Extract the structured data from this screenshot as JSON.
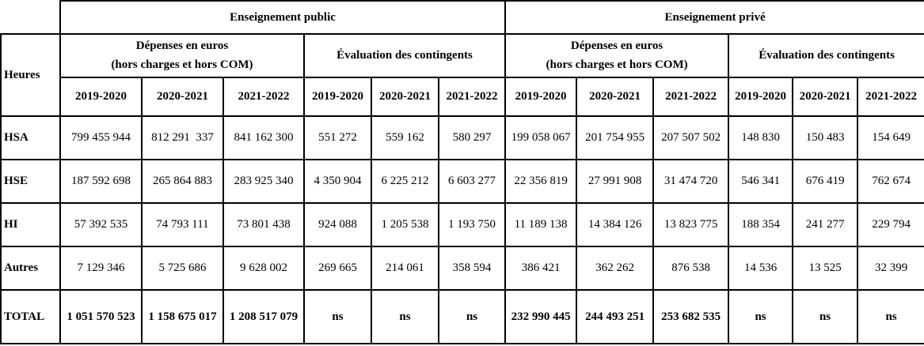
{
  "table": {
    "corner_label": "Heures",
    "groups": [
      {
        "label": "Enseignement public"
      },
      {
        "label": "Enseignement privé"
      }
    ],
    "subheaders": {
      "depenses_line1": "Dépenses en euros",
      "depenses_line2": "(hors charges et hors COM)",
      "evaluation": "Évaluation des contingents"
    },
    "years": [
      "2019-2020",
      "2020-2021",
      "2021-2022"
    ],
    "rows": [
      {
        "label": "HSA",
        "values": [
          "799 455 944",
          "812 291  337",
          "841 162 300",
          "551 272",
          "559 162",
          "580 297",
          "199 058 067",
          "201 754 955",
          "207 507 502",
          "148 830",
          "150 483",
          "154 649"
        ]
      },
      {
        "label": "HSE",
        "values": [
          "187 592 698",
          "265 864 883",
          "283 925 340",
          "4 350 904",
          "6 225 212",
          "6 603 277",
          "22 356 819",
          "27 991 908",
          "31 474 720",
          "546 341",
          "676 419",
          "762 674"
        ]
      },
      {
        "label": "HI",
        "values": [
          "57 392 535",
          "74 793 111",
          "73 801 438",
          "924 088",
          "1 205 538",
          "1 193 750",
          "11 189 138",
          "14 384 126",
          "13 823 775",
          "188 354",
          "241 277",
          "229 794"
        ]
      },
      {
        "label": "Autres",
        "values": [
          "7 129 346",
          "5 725 686",
          "9 628 002",
          "269 665",
          "214 061",
          "358 594",
          "386 421",
          "362 262",
          "876 538",
          "14 536",
          "13 525",
          "32 399"
        ]
      },
      {
        "label": "TOTAL",
        "total": true,
        "values": [
          "1 051 570 523",
          "1 158 675 017",
          "1 208 517 079",
          "ns",
          "ns",
          "ns",
          "232 990 445",
          "244 493 251",
          "253 682 535",
          "ns",
          "ns",
          "ns"
        ]
      }
    ]
  }
}
